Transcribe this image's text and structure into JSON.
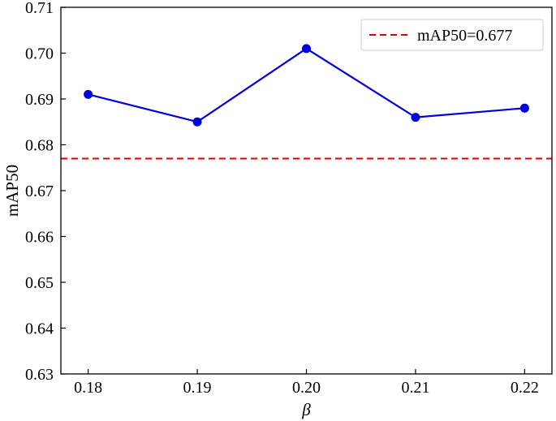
{
  "chart_data": {
    "type": "line",
    "title": "",
    "xlabel": "β",
    "ylabel": "mAP50",
    "x": [
      0.18,
      0.19,
      0.2,
      0.21,
      0.22
    ],
    "x_tick_labels": [
      "0.18",
      "0.19",
      "0.20",
      "0.21",
      "0.22"
    ],
    "y_tick_values": [
      0.63,
      0.64,
      0.65,
      0.66,
      0.67,
      0.68,
      0.69,
      0.7,
      0.71
    ],
    "y_tick_labels": [
      "0.63",
      "0.64",
      "0.65",
      "0.66",
      "0.67",
      "0.68",
      "0.69",
      "0.70",
      "0.71"
    ],
    "xlim": [
      0.1775,
      0.2225
    ],
    "ylim": [
      0.63,
      0.71
    ],
    "grid": false,
    "legend_position": "top-right",
    "series": [
      {
        "values": [
          0.691,
          0.685,
          0.701,
          0.686,
          0.688
        ],
        "color": "#0000dd",
        "marker": "circle",
        "line_style": "solid"
      }
    ],
    "reference_lines": [
      {
        "name": "mAP50=0.677",
        "value": 0.677,
        "orientation": "horizontal",
        "color": "#dd0000",
        "line_style": "dashed"
      }
    ]
  }
}
